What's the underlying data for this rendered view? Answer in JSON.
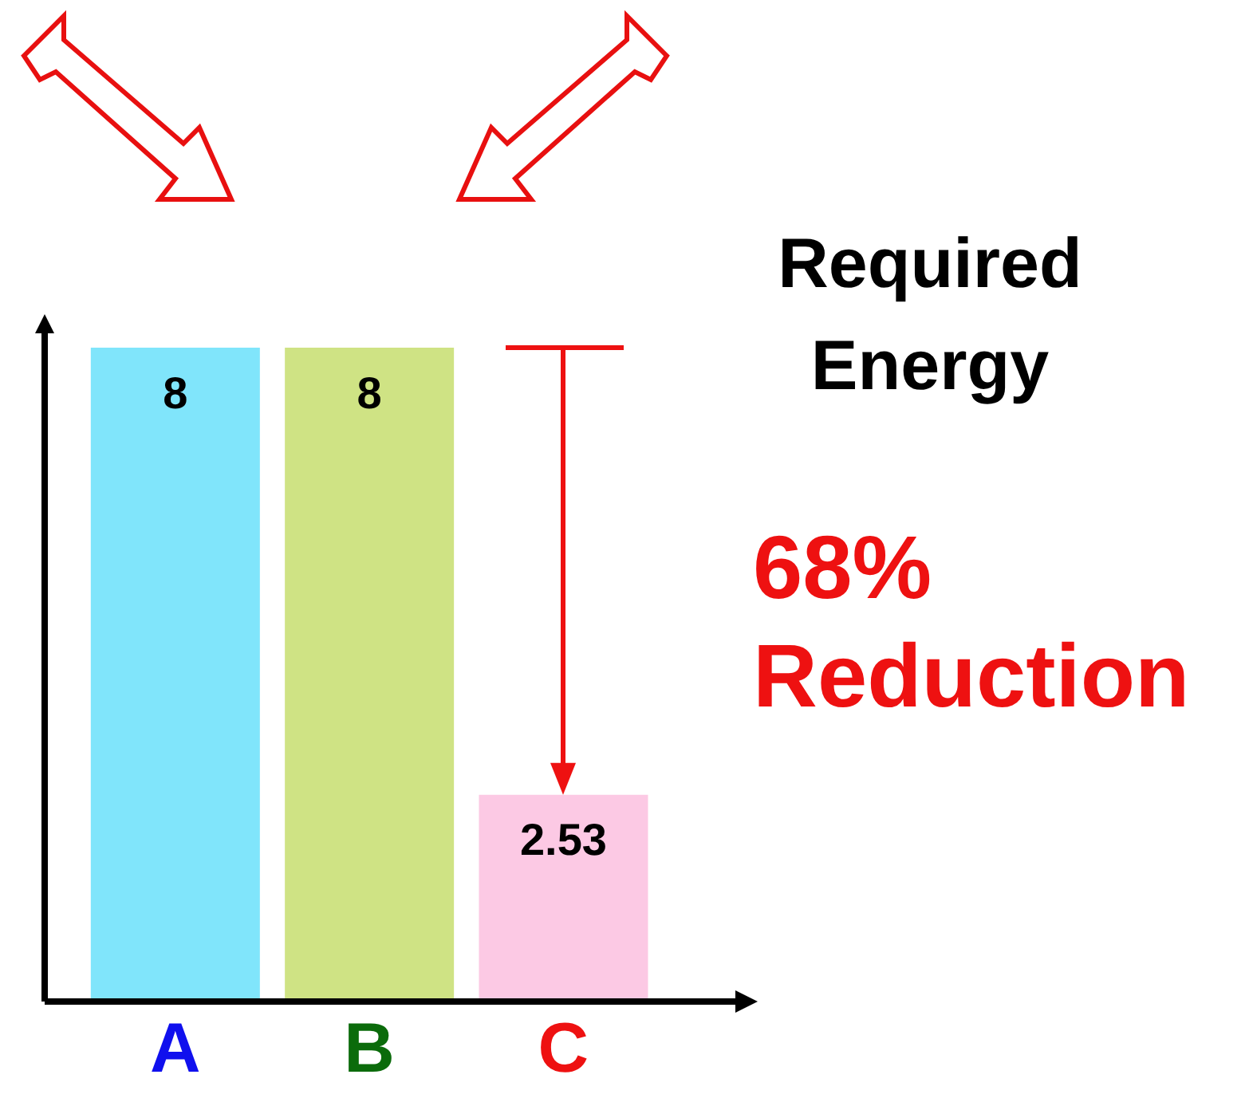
{
  "chart_data": {
    "type": "bar",
    "title": "Required Energy",
    "categories": [
      "A",
      "B",
      "C"
    ],
    "values": [
      8,
      8,
      2.53
    ],
    "colors": [
      "#80e5fb",
      "#cfe384",
      "#fcc9e4"
    ],
    "data_labels": true,
    "annotations": [
      "68% Reduction"
    ]
  }
}
